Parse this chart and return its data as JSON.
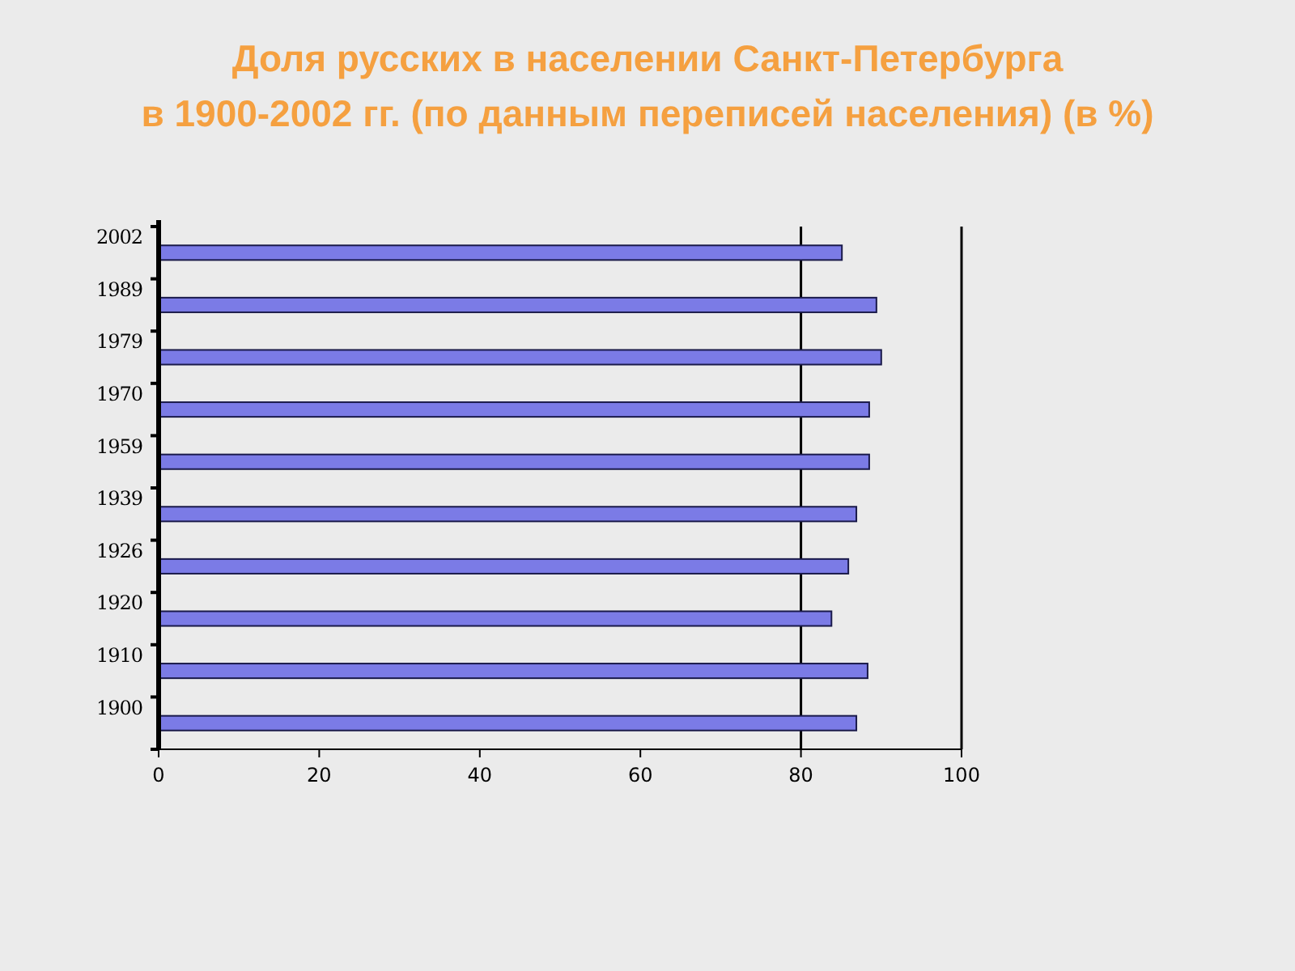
{
  "chart_data": {
    "type": "bar",
    "orientation": "horizontal",
    "title": "Доля русских в населении Санкт-Петербурга\nв 1900-2002 гг. (по данным переписей населения)  (в %)",
    "categories": [
      "2002",
      "1989",
      "1979",
      "1970",
      "1959",
      "1939",
      "1926",
      "1920",
      "1910",
      "1900"
    ],
    "values": [
      85.1,
      89.4,
      90.0,
      88.5,
      88.5,
      86.9,
      85.9,
      83.8,
      88.3,
      86.9
    ],
    "color": "#7b7be6",
    "xlim": [
      0,
      100
    ],
    "xticks": [
      0,
      20,
      40,
      60,
      80,
      100
    ],
    "ref_lines": [
      {
        "axis": "x",
        "value": 80,
        "color": "#000000"
      }
    ],
    "grid": false
  }
}
